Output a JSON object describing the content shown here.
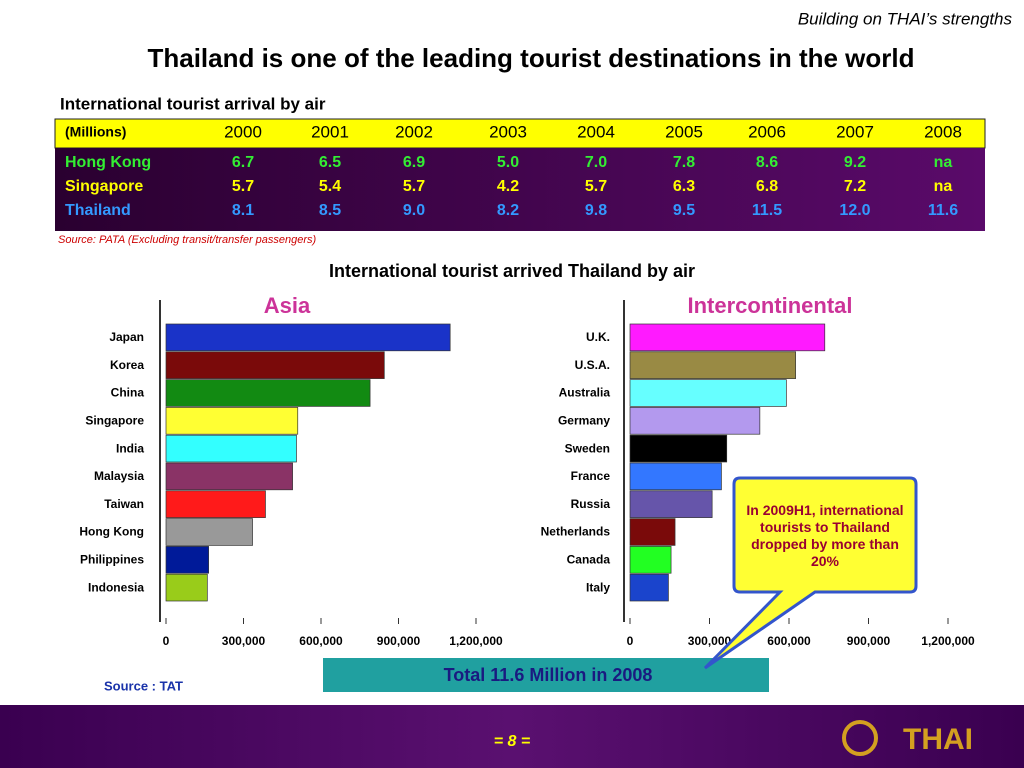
{
  "header": "Building on THAI’s strengths",
  "title": "Thailand is one of the leading tourist destinations in the world",
  "table": {
    "caption": "International tourist arrival by air",
    "columns": [
      "(Millions)",
      "2000",
      "2001",
      "2002",
      "2003",
      "2004",
      "2005",
      "2006",
      "2007",
      "2008"
    ],
    "rows": [
      [
        "Hong Kong",
        "6.7",
        "6.5",
        "6.9",
        "5.0",
        "7.0",
        "7.8",
        "8.6",
        "9.2",
        "na"
      ],
      [
        "Singapore",
        "5.7",
        "5.4",
        "5.7",
        "4.2",
        "5.7",
        "6.3",
        "6.8",
        "7.2",
        "na"
      ],
      [
        "Thailand",
        "8.1",
        "8.5",
        "9.0",
        "8.2",
        "9.8",
        "9.5",
        "11.5",
        "12.0",
        "11.6"
      ]
    ],
    "source": "Source: PATA  (Excluding transit/transfer passengers)"
  },
  "charts_heading": "International tourist arrived Thailand by air",
  "chart_data": [
    {
      "type": "bar",
      "title": "Asia",
      "categories": [
        "Japan",
        "Korea",
        "China",
        "Singapore",
        "India",
        "Malaysia",
        "Taiwan",
        "Hong Kong",
        "Philippines",
        "Indonesia"
      ],
      "values": [
        1100000,
        845000,
        790000,
        510000,
        505000,
        490000,
        385000,
        335000,
        165000,
        160000
      ],
      "colors": [
        "#1a33c8",
        "#7a0a0a",
        "#128a12",
        "#ffff33",
        "#33ffff",
        "#8a3366",
        "#ff1a1a",
        "#999999",
        "#001a99",
        "#99cc1a"
      ],
      "xlim": [
        0,
        1200000
      ],
      "xticks": [
        0,
        {
          "value": 300000,
          "label": "300,000"
        },
        {
          "value": 600000,
          "label": "600,000"
        },
        {
          "value": 900000,
          "label": "900,000"
        },
        {
          "value": 1200000,
          "label": "1,200,000"
        }
      ]
    },
    {
      "type": "bar",
      "title": "Intercontinental",
      "categories": [
        "U.K.",
        "U.S.A.",
        "Australia",
        "Germany",
        "Sweden",
        "France",
        "Russia",
        "Netherlands",
        "Canada",
        "Italy"
      ],
      "values": [
        735000,
        625000,
        590000,
        490000,
        365000,
        345000,
        310000,
        170000,
        155000,
        145000
      ],
      "colors": [
        "#ff1aff",
        "#998a44",
        "#66ffff",
        "#b399ee",
        "#000000",
        "#3377ff",
        "#6655aa",
        "#7a0a0a",
        "#22ff22",
        "#1a44cc"
      ],
      "xlim": [
        0,
        1200000
      ],
      "xticks": [
        0,
        {
          "value": 300000,
          "label": "300,000"
        },
        {
          "value": 600000,
          "label": "600,000"
        },
        {
          "value": 900000,
          "label": "900,000"
        },
        {
          "value": 1200000,
          "label": "1,200,000"
        }
      ]
    }
  ],
  "callout": "In 2009H1, international tourists to Thailand dropped by more than 20%",
  "total": "Total 11.6 Million in 2008",
  "source": "Source : TAT",
  "page_number": "= 8 =",
  "logo": "THAI"
}
